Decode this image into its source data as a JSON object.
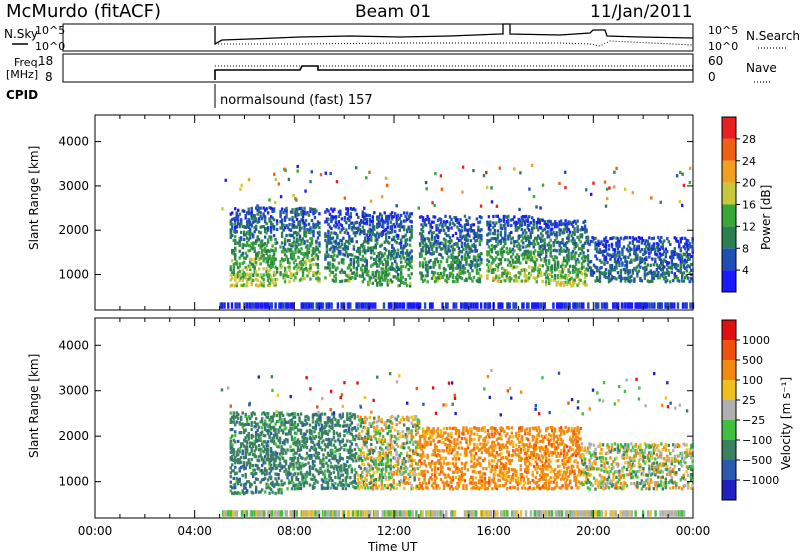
{
  "header": {
    "station": "McMurdo (fitACF)",
    "beam": "Beam 01",
    "date": "11/Jan/2011"
  },
  "top_panels": {
    "sky_label": "N.Sky",
    "search_label": "N.Search",
    "freq_label_line1": "Freq.",
    "freq_label_line2": "[MHz]",
    "nave_label": "Nave",
    "cpid_label": "CPID",
    "noise_left_ticks": [
      "10^5",
      "10^0"
    ],
    "noise_right_ticks": [
      "10^5",
      "10^0"
    ],
    "freq_ticks": [
      "18",
      "8"
    ],
    "nave_ticks": [
      "60",
      "0"
    ],
    "cpid_text": "normalsound (fast) 157"
  },
  "chart_data": [
    {
      "type": "heatmap",
      "title": "Power",
      "ylabel": "Slant Range [km]",
      "xlabel": "",
      "xlim": [
        0,
        24
      ],
      "ylim": [
        200,
        4600
      ],
      "y_ticks": [
        "4000",
        "3000",
        "2000",
        "1000"
      ],
      "colorbar": {
        "label": "Power [dB]",
        "ticks": [
          "28",
          "24",
          "20",
          "16",
          "12",
          "8",
          "4"
        ],
        "colors": [
          "#1a1aff",
          "#1f4fb4",
          "#2a7f4f",
          "#3aa53a",
          "#c8c83c",
          "#f0a020",
          "#f06010",
          "#e82020"
        ]
      },
      "echo_regions": [
        {
          "t_start": 5.4,
          "t_end": 7.3,
          "range_min": 700,
          "range_max": 2500,
          "level": "high"
        },
        {
          "t_start": 7.4,
          "t_end": 9.0,
          "range_min": 800,
          "range_max": 2500,
          "level": "high"
        },
        {
          "t_start": 9.2,
          "t_end": 10.8,
          "range_min": 800,
          "range_max": 2500,
          "level": "medium"
        },
        {
          "t_start": 10.8,
          "t_end": 12.7,
          "range_min": 700,
          "range_max": 2400,
          "level": "medium"
        },
        {
          "t_start": 13.0,
          "t_end": 15.5,
          "range_min": 800,
          "range_max": 2300,
          "level": "medium"
        },
        {
          "t_start": 15.7,
          "t_end": 18.0,
          "range_min": 800,
          "range_max": 2300,
          "level": "high"
        },
        {
          "t_start": 18.0,
          "t_end": 19.8,
          "range_min": 700,
          "range_max": 2200,
          "level": "high"
        },
        {
          "t_start": 19.8,
          "t_end": 24.0,
          "range_min": 800,
          "range_max": 1800,
          "level": "low"
        }
      ]
    },
    {
      "type": "heatmap",
      "title": "Velocity",
      "ylabel": "Slant Range [km]",
      "xlabel": "Time UT",
      "xlim": [
        0,
        24
      ],
      "ylim": [
        200,
        4600
      ],
      "x_ticks": [
        "00:00",
        "04:00",
        "08:00",
        "12:00",
        "16:00",
        "20:00",
        "00:00"
      ],
      "y_ticks": [
        "4000",
        "3000",
        "2000",
        "1000"
      ],
      "colorbar": {
        "label": "Velocity [m s⁻¹]",
        "ticks": [
          "1000",
          "500",
          "100",
          "25",
          "−25",
          "−100",
          "−500",
          "−1000"
        ],
        "colors": [
          "#2020c0",
          "#2a5ab0",
          "#3a8060",
          "#40c040",
          "#b0b0b0",
          "#f0c020",
          "#f08a10",
          "#f05010",
          "#e01010"
        ]
      },
      "echo_regions": [
        {
          "t_start": 5.4,
          "t_end": 7.5,
          "range_min": 700,
          "range_max": 2500,
          "velocity": "toward"
        },
        {
          "t_start": 7.5,
          "t_end": 10.5,
          "range_min": 800,
          "range_max": 2500,
          "velocity": "toward"
        },
        {
          "t_start": 10.5,
          "t_end": 13.0,
          "range_min": 800,
          "range_max": 2400,
          "velocity": "mixed"
        },
        {
          "t_start": 13.0,
          "t_end": 15.0,
          "range_min": 800,
          "range_max": 2200,
          "velocity": "away"
        },
        {
          "t_start": 15.0,
          "t_end": 19.5,
          "range_min": 800,
          "range_max": 2200,
          "velocity": "away"
        },
        {
          "t_start": 19.5,
          "t_end": 24.0,
          "range_min": 800,
          "range_max": 1800,
          "velocity": "mixed"
        }
      ]
    }
  ]
}
